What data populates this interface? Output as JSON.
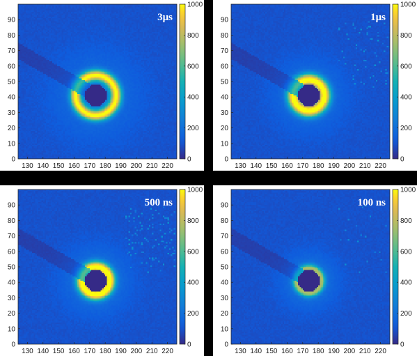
{
  "chart_data": [
    {
      "type": "heatmap",
      "title": "3μs",
      "xlim": [
        124,
        226
      ],
      "ylim": [
        0,
        100
      ],
      "x_ticks": [
        130,
        140,
        150,
        160,
        170,
        180,
        190,
        200,
        210,
        220
      ],
      "y_ticks": [
        0,
        10,
        20,
        30,
        40,
        50,
        60,
        70,
        80,
        90
      ],
      "colorbar": {
        "range": [
          0,
          1000
        ],
        "ticks": [
          0,
          200,
          400,
          600,
          800,
          1000
        ]
      },
      "ring": {
        "center_x": 174,
        "center_y": 41,
        "inner_radius": 7,
        "peak_radius": 13,
        "peak_intensity": 850,
        "width": 3.5,
        "halo_radius": 30,
        "halo_intensity": 110
      },
      "beamstop_angle_deg": 150,
      "scatter_noise_count": 0
    },
    {
      "type": "heatmap",
      "title": "1μs",
      "xlim": [
        124,
        226
      ],
      "ylim": [
        0,
        100
      ],
      "x_ticks": [
        130,
        140,
        150,
        160,
        170,
        180,
        190,
        200,
        210,
        220
      ],
      "y_ticks": [
        0,
        10,
        20,
        30,
        40,
        50,
        60,
        70,
        80,
        90
      ],
      "colorbar": {
        "range": [
          0,
          1000
        ],
        "ticks": [
          0,
          200,
          400,
          600,
          800,
          1000
        ]
      },
      "ring": {
        "center_x": 174,
        "center_y": 41,
        "inner_radius": 7,
        "peak_radius": 10,
        "peak_intensity": 880,
        "width": 4,
        "halo_radius": 24,
        "halo_intensity": 120
      },
      "beamstop_angle_deg": 150,
      "scatter_noise_count": 60
    },
    {
      "type": "heatmap",
      "title": "500 ns",
      "xlim": [
        124,
        226
      ],
      "ylim": [
        0,
        100
      ],
      "x_ticks": [
        130,
        140,
        150,
        160,
        170,
        180,
        190,
        200,
        210,
        220
      ],
      "y_ticks": [
        0,
        10,
        20,
        30,
        40,
        50,
        60,
        70,
        80,
        90
      ],
      "colorbar": {
        "range": [
          0,
          1000
        ],
        "ticks": [
          0,
          200,
          400,
          600,
          800,
          1000
        ]
      },
      "ring": {
        "center_x": 174,
        "center_y": 41,
        "inner_radius": 7,
        "peak_radius": 9,
        "peak_intensity": 900,
        "width": 3.5,
        "halo_radius": 22,
        "halo_intensity": 150
      },
      "beamstop_angle_deg": 150,
      "scatter_noise_count": 110
    },
    {
      "type": "heatmap",
      "title": "100 ns",
      "xlim": [
        124,
        226
      ],
      "ylim": [
        0,
        100
      ],
      "x_ticks": [
        130,
        140,
        150,
        160,
        170,
        180,
        190,
        200,
        210,
        220
      ],
      "y_ticks": [
        0,
        10,
        20,
        30,
        40,
        50,
        60,
        70,
        80,
        90
      ],
      "colorbar": {
        "range": [
          0,
          1000
        ],
        "ticks": [
          0,
          200,
          400,
          600,
          800,
          1000
        ]
      },
      "ring": {
        "center_x": 174,
        "center_y": 41,
        "inner_radius": 7,
        "peak_radius": 8,
        "peak_intensity": 560,
        "width": 2.5,
        "halo_radius": 18,
        "halo_intensity": 160
      },
      "beamstop_angle_deg": 150,
      "scatter_noise_count": 20
    }
  ],
  "colors": {
    "background": "#000000",
    "panel_background": "#ffffff",
    "colormap_low": "#352a87",
    "colormap_mid": "#1fb3a5",
    "colormap_high": "#f9fb0e"
  }
}
